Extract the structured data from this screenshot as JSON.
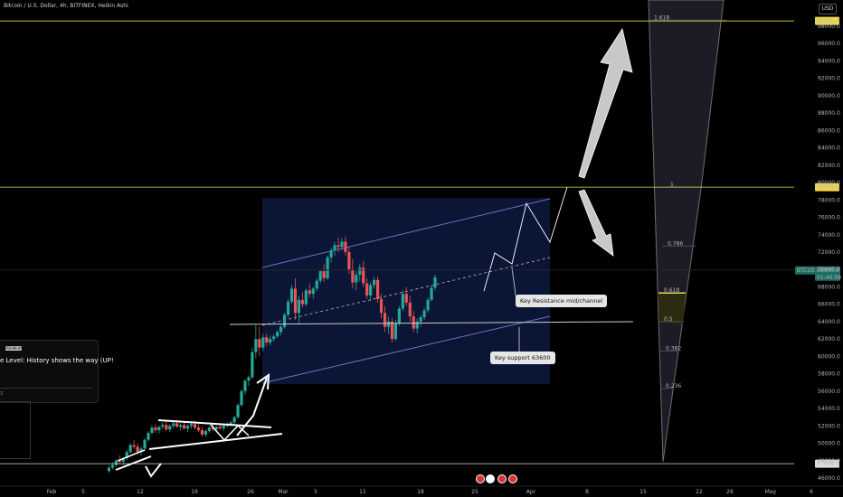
{
  "header": {
    "title": "Bitcoin / U.S. Dollar, 4h, BITFINEX, Heikin Ashi",
    "currency": "USD"
  },
  "colors": {
    "background": "#000000",
    "up": "#26a69a",
    "down": "#ef5350",
    "level_line": "#f0d64a",
    "channel_fill": "#0d1a40",
    "channel_edge": "#6a73b8",
    "white_line": "#ffffff",
    "fib_fill": "#1c1c26"
  },
  "chart_data": {
    "type": "candlestick",
    "y_axis": {
      "ylim": [
        45000,
        101000
      ],
      "ticks": [
        "98000.0",
        "96000.0",
        "94000.0",
        "92000.0",
        "90000.0",
        "88000.0",
        "86000.0",
        "84000.0",
        "82000.0",
        "80000.0",
        "78000.0",
        "76000.0",
        "74000.0",
        "72000.0",
        "70000.0",
        "68000.0",
        "66000.0",
        "64000.0",
        "62000.0",
        "60000.0",
        "58000.0",
        "56000.0",
        "54000.0",
        "52000.0",
        "50000.0",
        "48000.0",
        "46000.0"
      ]
    },
    "x_axis": {
      "ticks": [
        "Feb",
        "5",
        "12",
        "19",
        "26",
        "Mar",
        "5",
        "11",
        "18",
        "25",
        "Apr",
        "8",
        "15",
        "22",
        "26",
        "May",
        "6"
      ]
    },
    "price_labels": [
      {
        "value": "98605.4",
        "level": 98605.4,
        "style": "level"
      },
      {
        "value": "79478.6",
        "level": 79478.6,
        "style": "level"
      },
      {
        "value": "47649.0",
        "level": 47649.0,
        "style": "level"
      },
      {
        "value": "BTCUSD",
        "level": 68900,
        "style": "symbol"
      },
      {
        "value": "68900.0",
        "level": 68900,
        "style": "current"
      },
      {
        "value": "01:40:59",
        "level": 68900,
        "style": "timer"
      }
    ],
    "fib_labels": [
      {
        "text": "1.618",
        "level": 98700
      },
      {
        "text": "1",
        "level": 79500
      },
      {
        "text": "0.786",
        "level": 72700
      },
      {
        "text": "0.618",
        "level": 67300
      },
      {
        "text": "0.5",
        "level": 64000
      },
      {
        "text": "0.382",
        "level": 60600
      },
      {
        "text": "0.236",
        "level": 56300
      }
    ],
    "candles": [
      {
        "d": 8.0,
        "o": 46800,
        "h": 47400,
        "l": 46600,
        "c": 47200
      },
      {
        "d": 8.5,
        "o": 47200,
        "h": 47800,
        "l": 47000,
        "c": 47500
      },
      {
        "d": 9.0,
        "o": 47500,
        "h": 48200,
        "l": 47300,
        "c": 48000
      },
      {
        "d": 9.5,
        "o": 48000,
        "h": 48600,
        "l": 47700,
        "c": 47900
      },
      {
        "d": 10.0,
        "o": 47900,
        "h": 48400,
        "l": 47500,
        "c": 48300
      },
      {
        "d": 10.5,
        "o": 48300,
        "h": 49200,
        "l": 48100,
        "c": 49000
      },
      {
        "d": 11.0,
        "o": 49000,
        "h": 50000,
        "l": 48800,
        "c": 49800
      },
      {
        "d": 11.5,
        "o": 49800,
        "h": 50400,
        "l": 49300,
        "c": 49600
      },
      {
        "d": 12.0,
        "o": 49600,
        "h": 50000,
        "l": 48800,
        "c": 49000
      },
      {
        "d": 12.5,
        "o": 49000,
        "h": 49600,
        "l": 48600,
        "c": 49400
      },
      {
        "d": 13.0,
        "o": 49400,
        "h": 50600,
        "l": 49200,
        "c": 50400
      },
      {
        "d": 13.5,
        "o": 50400,
        "h": 51400,
        "l": 50200,
        "c": 51200
      },
      {
        "d": 14.0,
        "o": 51200,
        "h": 52100,
        "l": 51000,
        "c": 51800
      },
      {
        "d": 14.5,
        "o": 51800,
        "h": 52200,
        "l": 51200,
        "c": 51500
      },
      {
        "d": 15.0,
        "o": 51500,
        "h": 52000,
        "l": 51100,
        "c": 51900
      },
      {
        "d": 15.5,
        "o": 51900,
        "h": 52400,
        "l": 51600,
        "c": 52100
      },
      {
        "d": 16.0,
        "o": 52100,
        "h": 52500,
        "l": 51400,
        "c": 51600
      },
      {
        "d": 16.5,
        "o": 51600,
        "h": 52200,
        "l": 51300,
        "c": 52000
      },
      {
        "d": 17.0,
        "o": 52000,
        "h": 52600,
        "l": 51700,
        "c": 52300
      },
      {
        "d": 17.5,
        "o": 52300,
        "h": 52700,
        "l": 51800,
        "c": 51900
      },
      {
        "d": 18.0,
        "o": 51900,
        "h": 52300,
        "l": 51500,
        "c": 52100
      },
      {
        "d": 18.5,
        "o": 52100,
        "h": 52400,
        "l": 51600,
        "c": 51700
      },
      {
        "d": 19.0,
        "o": 51700,
        "h": 52200,
        "l": 51300,
        "c": 52000
      },
      {
        "d": 19.5,
        "o": 52000,
        "h": 52500,
        "l": 51700,
        "c": 52200
      },
      {
        "d": 20.0,
        "o": 52200,
        "h": 52600,
        "l": 51600,
        "c": 51800
      },
      {
        "d": 20.5,
        "o": 51800,
        "h": 52200,
        "l": 51300,
        "c": 51500
      },
      {
        "d": 21.0,
        "o": 51500,
        "h": 51900,
        "l": 50800,
        "c": 51000
      },
      {
        "d": 21.5,
        "o": 51000,
        "h": 51600,
        "l": 50700,
        "c": 51400
      },
      {
        "d": 22.0,
        "o": 51400,
        "h": 52000,
        "l": 51200,
        "c": 51800
      },
      {
        "d": 22.5,
        "o": 51800,
        "h": 52200,
        "l": 51400,
        "c": 51600
      },
      {
        "d": 23.0,
        "o": 51600,
        "h": 52000,
        "l": 51300,
        "c": 51900
      },
      {
        "d": 23.5,
        "o": 51900,
        "h": 52300,
        "l": 51600,
        "c": 51700
      },
      {
        "d": 24.0,
        "o": 51700,
        "h": 52100,
        "l": 51400,
        "c": 52000
      },
      {
        "d": 24.5,
        "o": 52000,
        "h": 52400,
        "l": 51800,
        "c": 52200
      },
      {
        "d": 25.0,
        "o": 52200,
        "h": 52600,
        "l": 51900,
        "c": 52400
      },
      {
        "d": 25.5,
        "o": 52400,
        "h": 53200,
        "l": 52200,
        "c": 53000
      },
      {
        "d": 26.0,
        "o": 53000,
        "h": 54600,
        "l": 52800,
        "c": 54400
      },
      {
        "d": 26.5,
        "o": 54400,
        "h": 56200,
        "l": 54200,
        "c": 56000
      },
      {
        "d": 27.0,
        "o": 56000,
        "h": 57400,
        "l": 55600,
        "c": 57200
      },
      {
        "d": 27.5,
        "o": 57200,
        "h": 57800,
        "l": 56600,
        "c": 57600
      },
      {
        "d": 28.0,
        "o": 57600,
        "h": 61000,
        "l": 57400,
        "c": 60500
      },
      {
        "d": 28.5,
        "o": 60500,
        "h": 63600,
        "l": 59800,
        "c": 62000
      },
      {
        "d": 29.0,
        "o": 62000,
        "h": 63400,
        "l": 60000,
        "c": 61000
      },
      {
        "d": 29.5,
        "o": 61000,
        "h": 62600,
        "l": 60600,
        "c": 62200
      },
      {
        "d": 30.0,
        "o": 62200,
        "h": 62600,
        "l": 61200,
        "c": 61600
      },
      {
        "d": 30.5,
        "o": 61600,
        "h": 62400,
        "l": 61300,
        "c": 62000
      },
      {
        "d": 31.0,
        "o": 62000,
        "h": 62600,
        "l": 61700,
        "c": 62300
      },
      {
        "d": 31.5,
        "o": 62300,
        "h": 63000,
        "l": 62100,
        "c": 62800
      },
      {
        "d": 32.0,
        "o": 62800,
        "h": 63600,
        "l": 62400,
        "c": 63400
      },
      {
        "d": 32.5,
        "o": 63400,
        "h": 65000,
        "l": 63200,
        "c": 64800
      },
      {
        "d": 33.0,
        "o": 64800,
        "h": 66600,
        "l": 64500,
        "c": 66300
      },
      {
        "d": 33.5,
        "o": 66300,
        "h": 68200,
        "l": 66000,
        "c": 67800
      },
      {
        "d": 34.0,
        "o": 67800,
        "h": 69000,
        "l": 64200,
        "c": 65000
      },
      {
        "d": 34.5,
        "o": 65000,
        "h": 67000,
        "l": 63800,
        "c": 66500
      },
      {
        "d": 35.0,
        "o": 66500,
        "h": 67400,
        "l": 65600,
        "c": 66000
      },
      {
        "d": 35.5,
        "o": 66000,
        "h": 67800,
        "l": 65800,
        "c": 67600
      },
      {
        "d": 36.0,
        "o": 67600,
        "h": 68400,
        "l": 66800,
        "c": 67200
      },
      {
        "d": 36.5,
        "o": 67200,
        "h": 68000,
        "l": 66600,
        "c": 67800
      },
      {
        "d": 37.0,
        "o": 67800,
        "h": 69000,
        "l": 67500,
        "c": 68700
      },
      {
        "d": 37.5,
        "o": 68700,
        "h": 70000,
        "l": 68400,
        "c": 69800
      },
      {
        "d": 38.0,
        "o": 69800,
        "h": 70600,
        "l": 68600,
        "c": 69000
      },
      {
        "d": 38.5,
        "o": 69000,
        "h": 71600,
        "l": 68800,
        "c": 71400
      },
      {
        "d": 39.0,
        "o": 71400,
        "h": 72500,
        "l": 70800,
        "c": 72200
      },
      {
        "d": 39.5,
        "o": 72200,
        "h": 73200,
        "l": 71600,
        "c": 72800
      },
      {
        "d": 40.0,
        "o": 72800,
        "h": 73700,
        "l": 72000,
        "c": 72600
      },
      {
        "d": 40.5,
        "o": 72600,
        "h": 73600,
        "l": 72200,
        "c": 73200
      },
      {
        "d": 41.0,
        "o": 73200,
        "h": 73800,
        "l": 71600,
        "c": 72000
      },
      {
        "d": 41.5,
        "o": 72000,
        "h": 72600,
        "l": 69500,
        "c": 70000
      },
      {
        "d": 42.0,
        "o": 70000,
        "h": 71200,
        "l": 67800,
        "c": 68500
      },
      {
        "d": 42.5,
        "o": 68500,
        "h": 69800,
        "l": 67600,
        "c": 69400
      },
      {
        "d": 43.0,
        "o": 69400,
        "h": 70600,
        "l": 68600,
        "c": 70200
      },
      {
        "d": 43.5,
        "o": 70200,
        "h": 71000,
        "l": 68000,
        "c": 68400
      },
      {
        "d": 44.0,
        "o": 68400,
        "h": 69000,
        "l": 66600,
        "c": 67000
      },
      {
        "d": 44.5,
        "o": 67000,
        "h": 68600,
        "l": 66400,
        "c": 68200
      },
      {
        "d": 45.0,
        "o": 68200,
        "h": 69200,
        "l": 67800,
        "c": 68800
      },
      {
        "d": 45.5,
        "o": 68800,
        "h": 69200,
        "l": 66200,
        "c": 66600
      },
      {
        "d": 46.0,
        "o": 66600,
        "h": 67200,
        "l": 64400,
        "c": 65000
      },
      {
        "d": 46.5,
        "o": 65000,
        "h": 65800,
        "l": 62800,
        "c": 63400
      },
      {
        "d": 47.0,
        "o": 63400,
        "h": 64600,
        "l": 62600,
        "c": 64000
      },
      {
        "d": 47.5,
        "o": 64000,
        "h": 64400,
        "l": 61600,
        "c": 62000
      },
      {
        "d": 48.0,
        "o": 62000,
        "h": 64200,
        "l": 61800,
        "c": 63800
      },
      {
        "d": 48.5,
        "o": 63800,
        "h": 65800,
        "l": 63500,
        "c": 65500
      },
      {
        "d": 49.0,
        "o": 65500,
        "h": 67600,
        "l": 65200,
        "c": 67200
      },
      {
        "d": 49.5,
        "o": 67200,
        "h": 68000,
        "l": 65800,
        "c": 66200
      },
      {
        "d": 50.0,
        "o": 66200,
        "h": 67000,
        "l": 64000,
        "c": 64600
      },
      {
        "d": 50.5,
        "o": 64600,
        "h": 65200,
        "l": 62800,
        "c": 63200
      },
      {
        "d": 51.0,
        "o": 63200,
        "h": 64400,
        "l": 62600,
        "c": 64000
      },
      {
        "d": 51.5,
        "o": 64000,
        "h": 64800,
        "l": 63400,
        "c": 64500
      },
      {
        "d": 52.0,
        "o": 64500,
        "h": 65600,
        "l": 64200,
        "c": 65300
      },
      {
        "d": 52.5,
        "o": 65300,
        "h": 66800,
        "l": 65000,
        "c": 66500
      },
      {
        "d": 53.0,
        "o": 66500,
        "h": 68200,
        "l": 66300,
        "c": 67900
      },
      {
        "d": 53.5,
        "o": 67900,
        "h": 69400,
        "l": 67600,
        "c": 69100
      }
    ],
    "annotations": {
      "callouts": [
        "Key Resistance mid/channel",
        "Key support 63600"
      ],
      "idea_title": "e Level: History shows the way (UP!",
      "idea_badge": "PREMIUM",
      "idea_number": "3"
    }
  }
}
